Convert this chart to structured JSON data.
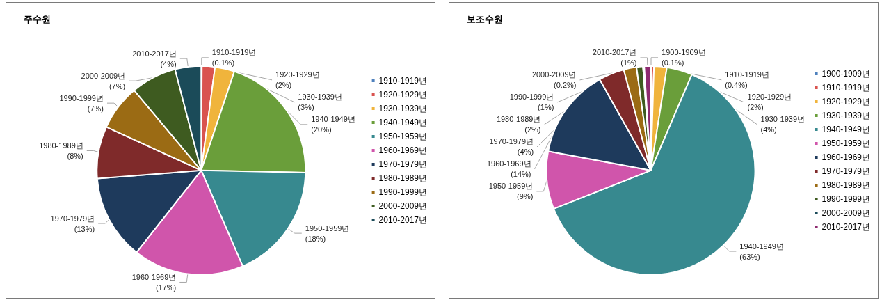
{
  "chart_data": [
    {
      "type": "pie",
      "title": "주수원",
      "categories": [
        "1910-1919년",
        "1920-1929년",
        "1930-1939년",
        "1940-1949년",
        "1950-1959년",
        "1960-1969년",
        "1970-1979년",
        "1980-1989년",
        "1990-1999년",
        "2000-2009년",
        "2010-2017년"
      ],
      "values": [
        0.1,
        2,
        3,
        20,
        18,
        17,
        13,
        8,
        7,
        7,
        4
      ],
      "value_labels": [
        "(0.1%)",
        "(2%)",
        "(3%)",
        "(20%)",
        "(18%)",
        "(17%)",
        "(13%)",
        "(8%)",
        "(7%)",
        "(7%)",
        "(4%)"
      ],
      "colors": [
        "#4f81bd",
        "#d9534f",
        "#f0b43c",
        "#6a9e3a",
        "#37898f",
        "#d055ab",
        "#1e3a5c",
        "#7f2a2a",
        "#9b6b14",
        "#3e5b20",
        "#1b4b59"
      ],
      "legend": "right"
    },
    {
      "type": "pie",
      "title": "보조수원",
      "categories": [
        "1900-1909년",
        "1910-1919년",
        "1920-1929년",
        "1930-1939년",
        "1940-1949년",
        "1950-1959년",
        "1960-1969년",
        "1970-1979년",
        "1980-1989년",
        "1990-1999년",
        "2000-2009년",
        "2010-2017년"
      ],
      "values": [
        0.1,
        0.4,
        2,
        4,
        63,
        9,
        14,
        4,
        2,
        1,
        0.2,
        1
      ],
      "value_labels": [
        "(0.1%)",
        "(0.4%)",
        "(2%)",
        "(4%)",
        "(63%)",
        "(9%)",
        "(14%)",
        "(4%)",
        "(2%)",
        "(1%)",
        "(0.2%)",
        "(1%)"
      ],
      "colors": [
        "#4f81bd",
        "#d9534f",
        "#f0b43c",
        "#6a9e3a",
        "#37898f",
        "#d055ab",
        "#1e3a5c",
        "#7f2a2a",
        "#9b6b14",
        "#3e5b20",
        "#1b4b59",
        "#8e2a70"
      ],
      "legend": "right"
    }
  ]
}
